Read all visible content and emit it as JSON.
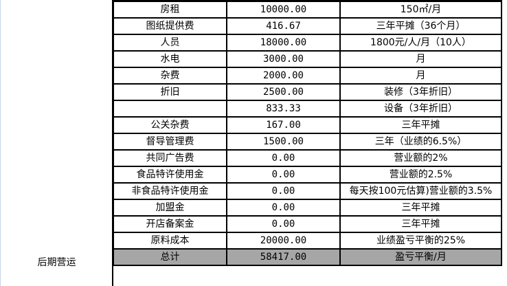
{
  "section_label": "后期营运",
  "rows": [
    {
      "item": "房租",
      "amount": "10000.00",
      "note": "150㎡/月"
    },
    {
      "item": "图纸提供费",
      "amount": "416.67",
      "note": "三年平摊（36个月）"
    },
    {
      "item": "人员",
      "amount": "18000.00",
      "note": "1800元/人/月（10人）"
    },
    {
      "item": "水电",
      "amount": "3000.00",
      "note": "月"
    },
    {
      "item": "杂费",
      "amount": "2000.00",
      "note": "月"
    },
    {
      "item": "折旧",
      "amount": "2500.00",
      "note": "装修（3年折旧）"
    },
    {
      "item": "",
      "amount": "833.33",
      "note": "设备（3年折旧）"
    },
    {
      "item": "公关杂费",
      "amount": "167.00",
      "note": "三年平摊"
    },
    {
      "item": "督导管理费",
      "amount": "1500.00",
      "note": "三年（业绩的6.5%）"
    },
    {
      "item": "共同广告费",
      "amount": "0.00",
      "note": "营业额的2%"
    },
    {
      "item": "食品特许使用金",
      "amount": "0.00",
      "note": "营业额的2.5%"
    },
    {
      "item": "非食品特许使用金",
      "amount": "0.00",
      "note": "每天按100元估算)营业额的3.5%"
    },
    {
      "item": "加盟金",
      "amount": "0.00",
      "note": "三年平摊"
    },
    {
      "item": "开店备案金",
      "amount": "0.00",
      "note": "三年平摊"
    },
    {
      "item": "原料成本",
      "amount": "20000.00",
      "note": "业绩盈亏平衡的25%"
    }
  ],
  "total": {
    "item": "总计",
    "amount": "58417.00",
    "note": "盈亏平衡/月"
  },
  "colors": {
    "total_fill": "#a6a6a6",
    "border": "#000000"
  }
}
